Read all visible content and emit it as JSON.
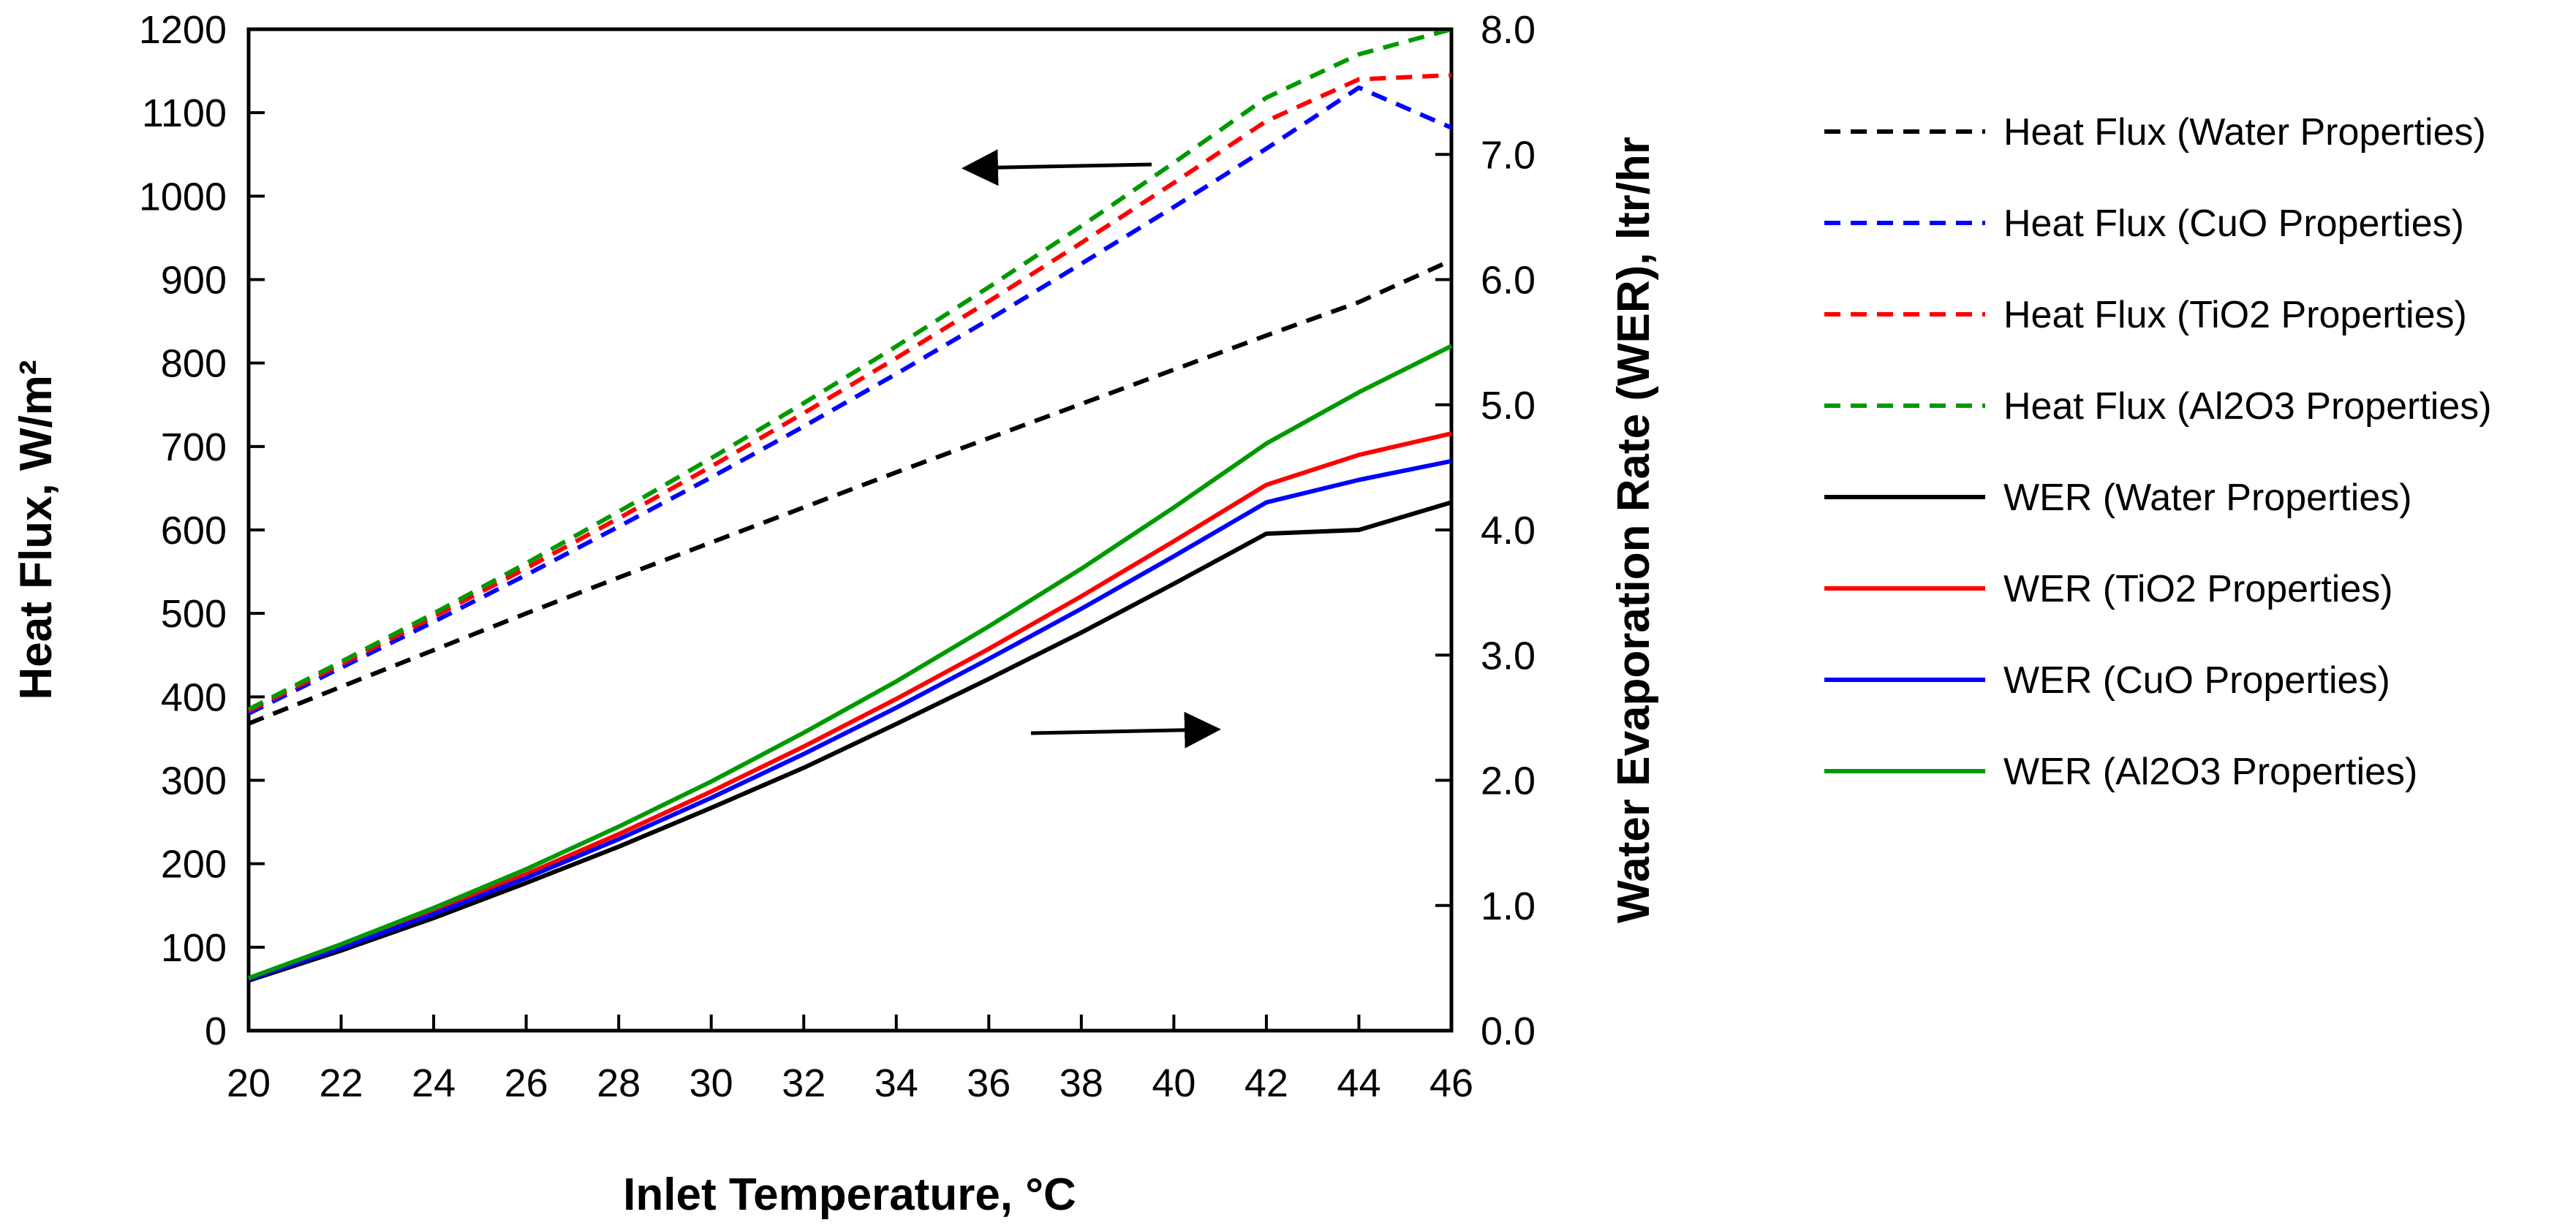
{
  "chart_data": {
    "type": "line",
    "xlabel": "Inlet Temperature, °C",
    "ylabel_left": "Heat Flux, W/m²",
    "ylabel_right": "Water Evaporation Rate (WER), ltr/hr",
    "xlim": [
      20,
      46
    ],
    "xticks": [
      "20",
      "22",
      "24",
      "26",
      "28",
      "30",
      "32",
      "34",
      "36",
      "38",
      "40",
      "42",
      "44",
      "46"
    ],
    "ylim_left": [
      0,
      1200
    ],
    "yticks_left": [
      "0",
      "100",
      "200",
      "300",
      "400",
      "500",
      "600",
      "700",
      "800",
      "900",
      "1000",
      "1100",
      "1200"
    ],
    "ylim_right": [
      0.0,
      8.0
    ],
    "yticks_right": [
      "0.0",
      "1.0",
      "2.0",
      "3.0",
      "4.0",
      "5.0",
      "6.0",
      "7.0",
      "8.0"
    ],
    "grid": false,
    "legend_position": "right",
    "x": [
      20,
      22,
      24,
      26,
      28,
      30,
      32,
      34,
      36,
      38,
      40,
      42,
      44,
      46
    ],
    "series": [
      {
        "name": "Heat Flux (Water Properties)",
        "axis": "left",
        "style": "dashed",
        "color": "#000000",
        "values": [
          368,
          412,
          456,
          500,
          543,
          585,
          627,
          669,
          710,
          751,
          792,
          833,
          873,
          923
        ]
      },
      {
        "name": "Heat Flux (CuO Properties)",
        "axis": "left",
        "style": "dashed",
        "color": "#0000ff",
        "values": [
          380,
          435,
          490,
          546,
          604,
          663,
          724,
          787,
          852,
          919,
          987,
          1057,
          1130,
          1082
        ]
      },
      {
        "name": "Heat Flux (TiO2 Properties)",
        "axis": "left",
        "style": "dashed",
        "color": "#ff0000",
        "values": [
          383,
          439,
          496,
          554,
          614,
          676,
          740,
          806,
          874,
          944,
          1016,
          1090,
          1140,
          1145
        ]
      },
      {
        "name": "Heat Flux (Al2O3 Properties)",
        "axis": "left",
        "style": "dashed",
        "color": "#009900",
        "values": [
          385,
          442,
          500,
          560,
          622,
          686,
          752,
          820,
          891,
          964,
          1040,
          1118,
          1170,
          1200
        ]
      },
      {
        "name": "WER (Water Properties)",
        "axis": "right",
        "style": "solid",
        "color": "#000000",
        "values": [
          0.4,
          0.64,
          0.9,
          1.18,
          1.47,
          1.78,
          2.1,
          2.45,
          2.81,
          3.18,
          3.57,
          3.97,
          4.0,
          4.22
        ]
      },
      {
        "name": "WER (TiO2 Properties)",
        "axis": "right",
        "style": "solid",
        "color": "#ff0000",
        "values": [
          0.41,
          0.67,
          0.95,
          1.25,
          1.57,
          1.91,
          2.27,
          2.65,
          3.05,
          3.47,
          3.91,
          4.36,
          4.6,
          4.77
        ]
      },
      {
        "name": "WER (CuO Properties)",
        "axis": "right",
        "style": "solid",
        "color": "#0000ff",
        "values": [
          0.41,
          0.66,
          0.93,
          1.22,
          1.53,
          1.86,
          2.21,
          2.58,
          2.97,
          3.37,
          3.79,
          4.22,
          4.4,
          4.55
        ]
      },
      {
        "name": "WER (Al2O3 Properties)",
        "axis": "right",
        "style": "solid",
        "color": "#009900",
        "values": [
          0.42,
          0.69,
          0.98,
          1.29,
          1.63,
          1.99,
          2.38,
          2.79,
          3.23,
          3.69,
          4.18,
          4.69,
          5.1,
          5.47
        ]
      }
    ]
  }
}
